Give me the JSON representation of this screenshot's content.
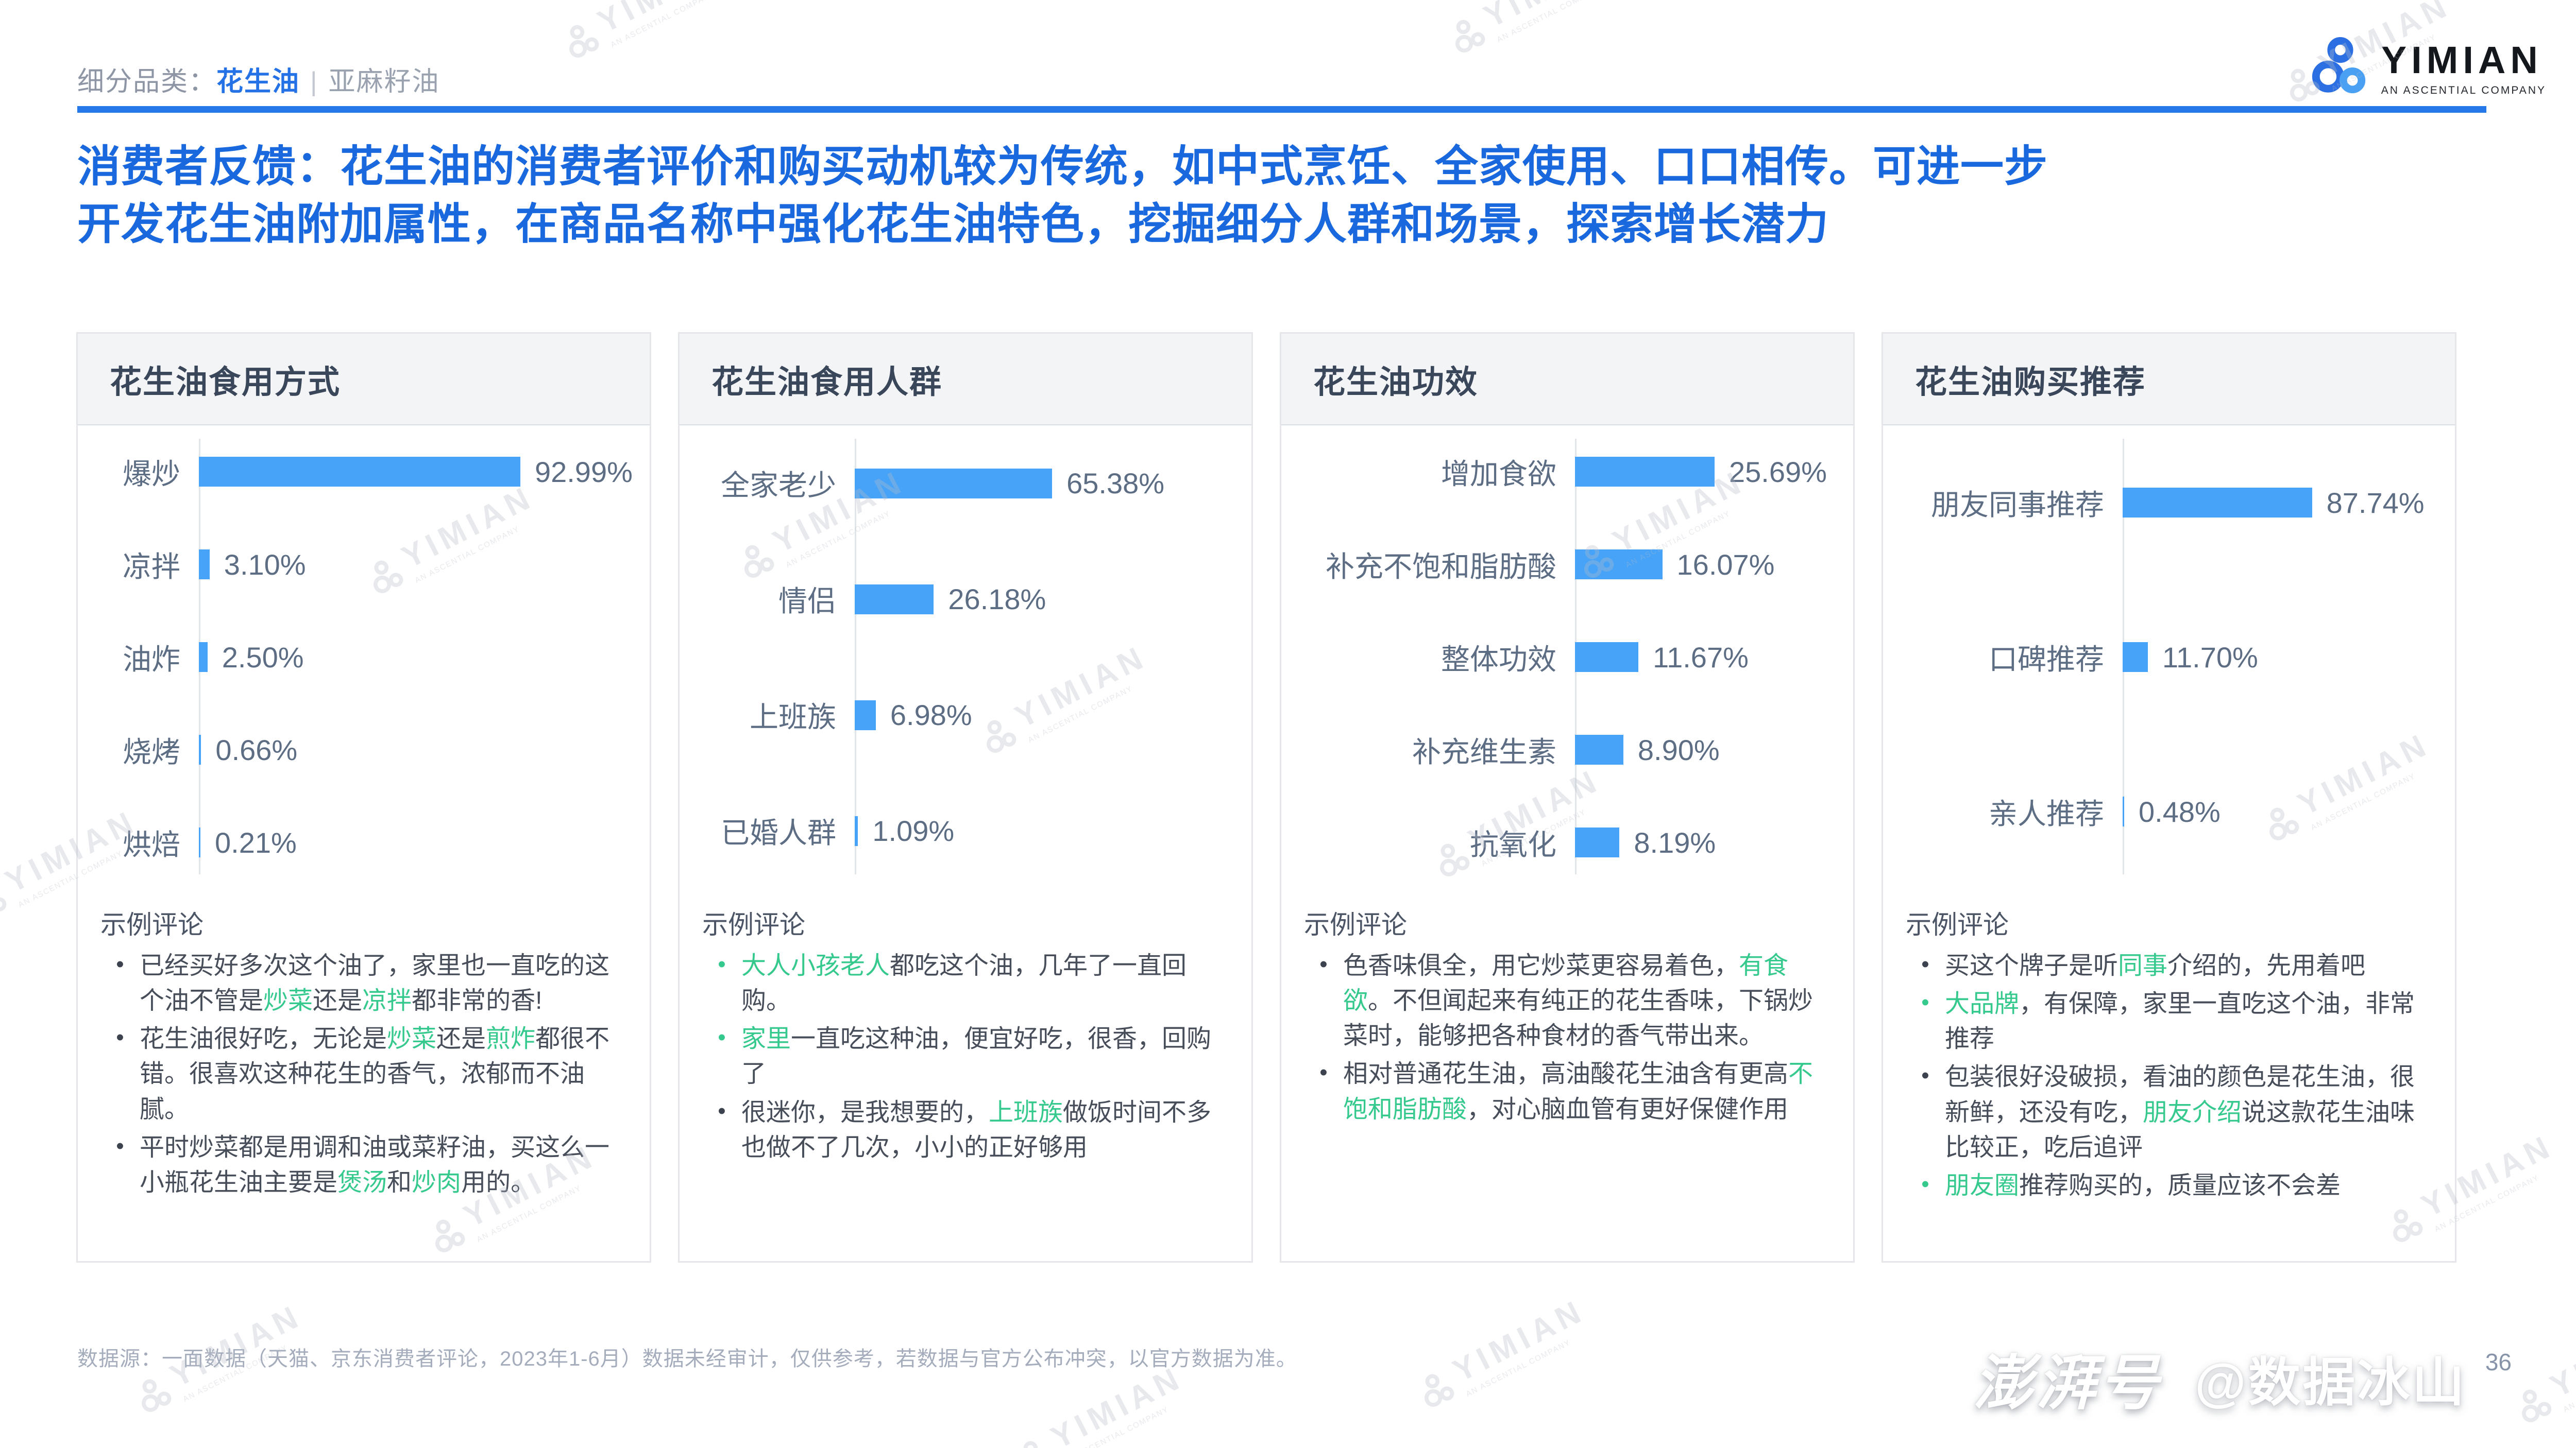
{
  "header": {
    "breadcrumb": {
      "label": "细分品类：",
      "active_tab": "花生油",
      "separator": "|",
      "inactive_tab": "亚麻籽油"
    },
    "logo": {
      "name": "YIMIAN",
      "subtitle": "AN ASCENTIAL COMPANY"
    }
  },
  "title": {
    "line1": "消费者反馈：花生油的消费者评价和购买动机较为传统，如中式烹饪、全家使用、口口相传。可进一步",
    "line2": "开发花生油附加属性，在商品名称中强化花生油特色，挖掘细分人群和场景，探索增长潜力"
  },
  "chart_data": [
    {
      "type": "bar",
      "orientation": "horizontal",
      "title": "花生油食用方式",
      "categories": [
        "爆炒",
        "凉拌",
        "油炸",
        "烧烤",
        "烘焙"
      ],
      "values": [
        92.99,
        3.1,
        2.5,
        0.66,
        0.21
      ],
      "pct_labels": [
        "92.99%",
        "3.10%",
        "2.50%",
        "0.66%",
        "0.21%"
      ],
      "value_unit": "%",
      "grid": false,
      "legend": false
    },
    {
      "type": "bar",
      "orientation": "horizontal",
      "title": "花生油食用人群",
      "categories": [
        "全家老少",
        "情侣",
        "上班族",
        "已婚人群"
      ],
      "values": [
        65.38,
        26.18,
        6.98,
        1.09
      ],
      "pct_labels": [
        "65.38%",
        "26.18%",
        "6.98%",
        "1.09%"
      ],
      "value_unit": "%",
      "grid": false,
      "legend": false
    },
    {
      "type": "bar",
      "orientation": "horizontal",
      "title": "花生油功效",
      "categories": [
        "增加食欲",
        "补充不饱和脂肪酸",
        "整体功效",
        "补充维生素",
        "抗氧化"
      ],
      "values": [
        25.69,
        16.07,
        11.67,
        8.9,
        8.19
      ],
      "pct_labels": [
        "25.69%",
        "16.07%",
        "11.67%",
        "8.90%",
        "8.19%"
      ],
      "value_unit": "%",
      "grid": false,
      "legend": false
    },
    {
      "type": "bar",
      "orientation": "horizontal",
      "title": "花生油购买推荐",
      "categories": [
        "朋友同事推荐",
        "口碑推荐",
        "亲人推荐"
      ],
      "values": [
        87.74,
        11.7,
        0.48
      ],
      "pct_labels": [
        "87.74%",
        "11.70%",
        "0.48%"
      ],
      "value_unit": "%",
      "grid": false,
      "legend": false
    }
  ],
  "panels": [
    {
      "comments_heading": "示例评论",
      "comments": [
        [
          {
            "t": "已经买好多次这个油了，家里也一直吃的这个油不管是",
            "g": false
          },
          {
            "t": "炒菜",
            "g": true
          },
          {
            "t": "还是",
            "g": false
          },
          {
            "t": "凉拌",
            "g": true
          },
          {
            "t": "都非常的香!",
            "g": false
          }
        ],
        [
          {
            "t": "花生油很好吃，无论是",
            "g": false
          },
          {
            "t": "炒菜",
            "g": true
          },
          {
            "t": "还是",
            "g": false
          },
          {
            "t": "煎炸",
            "g": true
          },
          {
            "t": "都很不错。很喜欢这种花生的香气，浓郁而不油腻。",
            "g": false
          }
        ],
        [
          {
            "t": "平时炒菜都是用调和油或菜籽油，买这么一小瓶花生油主要是",
            "g": false
          },
          {
            "t": "煲汤",
            "g": true
          },
          {
            "t": "和",
            "g": false
          },
          {
            "t": "炒肉",
            "g": true
          },
          {
            "t": "用的。",
            "g": false
          }
        ]
      ]
    },
    {
      "comments_heading": "示例评论",
      "comments": [
        [
          {
            "t": "大人小孩老人",
            "g": true
          },
          {
            "t": "都吃这个油，几年了一直回购。",
            "g": false
          }
        ],
        [
          {
            "t": "家里",
            "g": true
          },
          {
            "t": "一直吃这种油，便宜好吃，很香，回购了",
            "g": false
          }
        ],
        [
          {
            "t": "很迷你，是我想要的，",
            "g": false
          },
          {
            "t": "上班族",
            "g": true
          },
          {
            "t": "做饭时间不多也做不了几次，小小的正好够用",
            "g": false
          }
        ]
      ]
    },
    {
      "comments_heading": "示例评论",
      "comments": [
        [
          {
            "t": "色香味俱全，用它炒菜更容易着色，",
            "g": false
          },
          {
            "t": "有食欲",
            "g": true
          },
          {
            "t": "。不但闻起来有纯正的花生香味，下锅炒菜时，能够把各种食材的香气带出来。",
            "g": false
          }
        ],
        [
          {
            "t": "相对普通花生油，高油酸花生油含有更高",
            "g": false
          },
          {
            "t": "不饱和脂肪酸",
            "g": true
          },
          {
            "t": "，对心脑血管有更好保健作用",
            "g": false
          }
        ]
      ]
    },
    {
      "comments_heading": "示例评论",
      "comments": [
        [
          {
            "t": "买这个牌子是听",
            "g": false
          },
          {
            "t": "同事",
            "g": true
          },
          {
            "t": "介绍的，先用着吧",
            "g": false
          }
        ],
        [
          {
            "t": "大品牌",
            "g": true
          },
          {
            "t": "，有保障，家里一直吃这个油，非常推荐",
            "g": false
          }
        ],
        [
          {
            "t": "包装很好没破损，看油的颜色是花生油，很新鲜，还没有吃，",
            "g": false
          },
          {
            "t": "朋友介绍",
            "g": true
          },
          {
            "t": "说这款花生油味比较正，吃后追评",
            "g": false
          }
        ],
        [
          {
            "t": "朋友圈",
            "g": true
          },
          {
            "t": "推荐购买的，质量应该不会差",
            "g": false
          }
        ]
      ]
    }
  ],
  "footer": {
    "source": "数据源：一面数据（天猫、京东消费者评论，2023年1-6月）数据未经审计，仅供参考，若数据与官方公布冲突，以官方数据为准。",
    "page": "36"
  },
  "watermark": {
    "line1": "YIMIAN",
    "line2": "AN ASCENTIAL COMPANY"
  },
  "bottom_watermark": {
    "brand": "澎湃号",
    "handle": "@数据冰山"
  },
  "colors": {
    "accent_blue": "#1a68de",
    "bar_blue": "#47a3f7",
    "highlight_green": "#35c98e"
  }
}
